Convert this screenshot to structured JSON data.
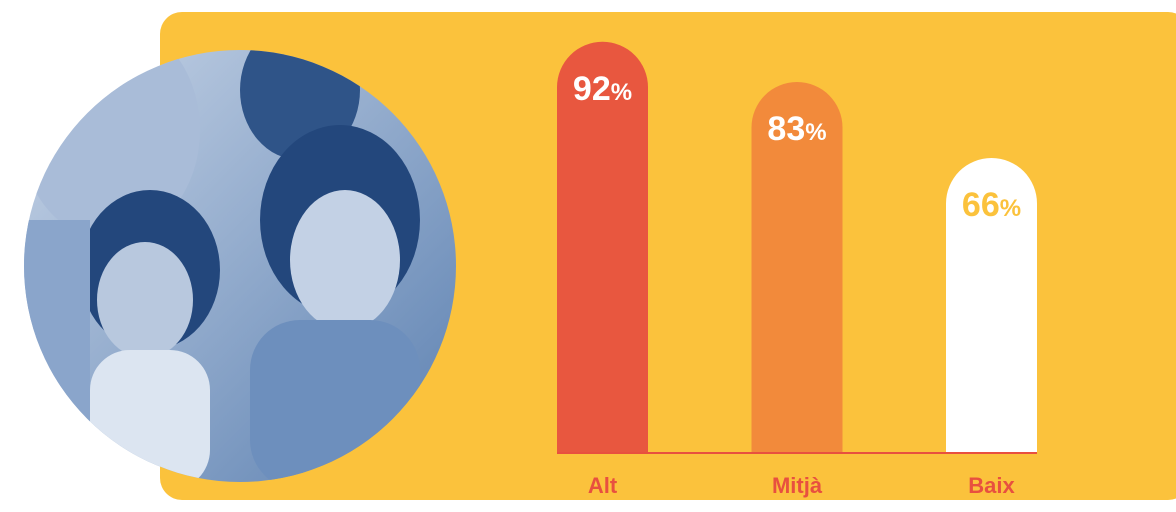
{
  "chart_data": {
    "type": "bar",
    "categories": [
      "Alt",
      "Mitjà",
      "Baix"
    ],
    "values": [
      92,
      83,
      66
    ],
    "value_labels": [
      "92%",
      "83%",
      "66%"
    ],
    "colors": [
      "#e8573f",
      "#f28a3b",
      "#ffffff"
    ],
    "label_colors": [
      "#ffffff",
      "#ffffff",
      "#fbc23c"
    ],
    "category_color": "#e8503f",
    "background": "#fbc23c",
    "ylim": [
      0,
      100
    ]
  }
}
